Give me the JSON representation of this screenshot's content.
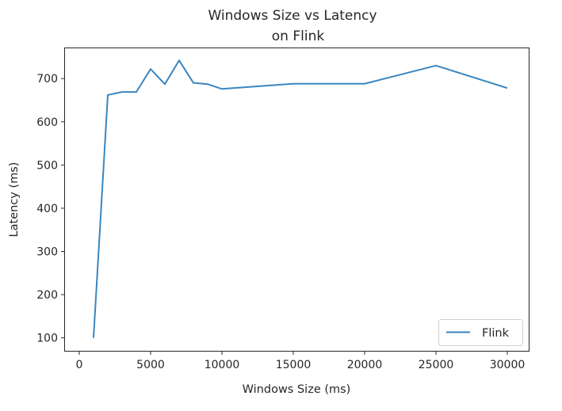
{
  "chart_data": {
    "type": "line",
    "title_line1": "Windows Size vs Latency",
    "title_line2": "on Flink",
    "xlabel": "Windows Size (ms)",
    "ylabel": "Latency (ms)",
    "xlim": [
      -1000,
      31500
    ],
    "ylim": [
      70,
      770
    ],
    "x_ticks": [
      0,
      5000,
      10000,
      15000,
      20000,
      25000,
      30000
    ],
    "y_ticks": [
      100,
      200,
      300,
      400,
      500,
      600,
      700
    ],
    "grid": false,
    "legend_position": "lower-right",
    "series": [
      {
        "name": "Flink",
        "color": "#3a86bf",
        "x": [
          1000,
          2000,
          3000,
          4000,
          5000,
          6000,
          7000,
          8000,
          9000,
          10000,
          15000,
          20000,
          25000,
          30000
        ],
        "y": [
          100,
          662,
          669,
          669,
          722,
          687,
          742,
          690,
          687,
          676,
          688,
          688,
          730,
          678
        ]
      }
    ]
  }
}
